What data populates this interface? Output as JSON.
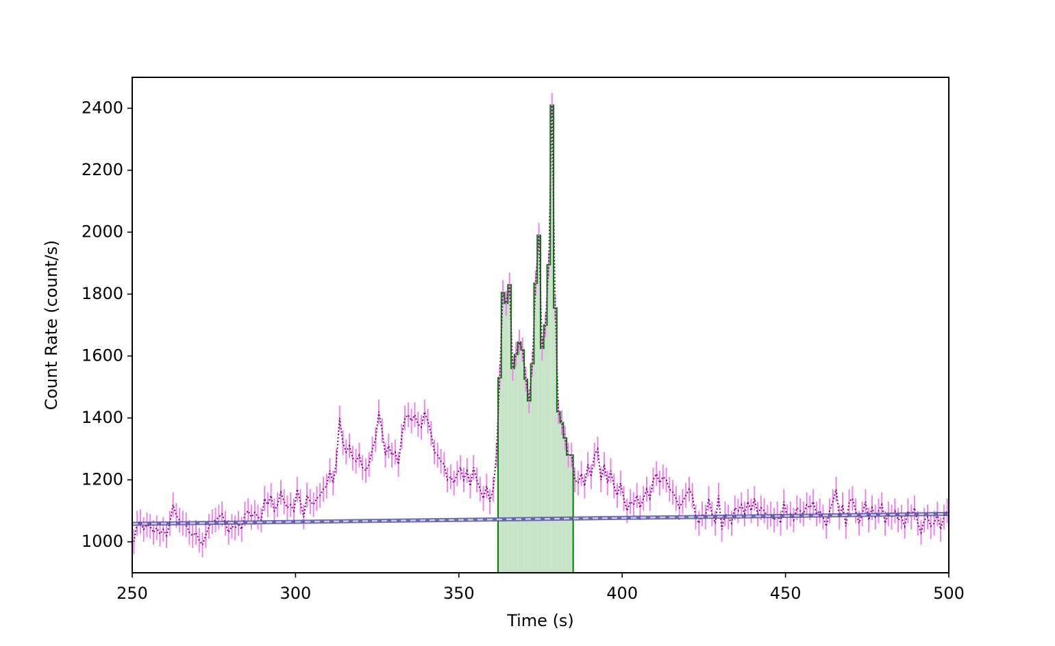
{
  "chart_data": {
    "type": "lightcurve",
    "xlabel": "Time (s)",
    "ylabel": "Count Rate (count/s)",
    "xlim": [
      250,
      500
    ],
    "ylim": [
      900,
      2500
    ],
    "xticks": [
      250,
      300,
      350,
      400,
      450,
      500
    ],
    "yticks": [
      1000,
      1200,
      1400,
      1600,
      1800,
      2000,
      2200,
      2400
    ],
    "bin_width": 1,
    "yerr": 40,
    "source_interval": [
      362,
      385
    ],
    "source_color": "#008000",
    "source_fill": "#c8e4c8",
    "series": [
      {
        "color": "#ee82ee",
        "line_color": "#800080",
        "x": [
          250,
          251,
          252,
          253,
          254,
          255,
          256,
          257,
          258,
          259,
          260,
          261,
          262,
          263,
          264,
          265,
          266,
          267,
          268,
          269,
          270,
          271,
          272,
          273,
          274,
          275,
          276,
          277,
          278,
          279,
          280,
          281,
          282,
          283,
          284,
          285,
          286,
          287,
          288,
          289,
          290,
          291,
          292,
          293,
          294,
          295,
          296,
          297,
          298,
          299,
          300,
          301,
          302,
          303,
          304,
          305,
          306,
          307,
          308,
          309,
          310,
          311,
          312,
          313,
          314,
          315,
          316,
          317,
          318,
          319,
          320,
          321,
          322,
          323,
          324,
          325,
          326,
          327,
          328,
          329,
          330,
          331,
          332,
          333,
          334,
          335,
          336,
          337,
          338,
          339,
          340,
          341,
          342,
          343,
          344,
          345,
          346,
          347,
          348,
          349,
          350,
          351,
          352,
          353,
          354,
          355,
          356,
          357,
          358,
          359,
          360,
          361,
          362,
          363,
          364,
          365,
          366,
          367,
          368,
          369,
          370,
          371,
          372,
          373,
          374,
          375,
          376,
          377,
          378,
          379,
          380,
          381,
          382,
          383,
          384,
          385,
          386,
          387,
          388,
          389,
          390,
          391,
          392,
          393,
          394,
          395,
          396,
          397,
          398,
          399,
          400,
          401,
          402,
          403,
          404,
          405,
          406,
          407,
          408,
          409,
          410,
          411,
          412,
          413,
          414,
          415,
          416,
          417,
          418,
          419,
          420,
          421,
          422,
          423,
          424,
          425,
          426,
          427,
          428,
          429,
          430,
          431,
          432,
          433,
          434,
          435,
          436,
          437,
          438,
          439,
          440,
          441,
          442,
          443,
          444,
          445,
          446,
          447,
          448,
          449,
          450,
          451,
          452,
          453,
          454,
          455,
          456,
          457,
          458,
          459,
          460,
          461,
          462,
          463,
          464,
          465,
          466,
          467,
          468,
          469,
          470,
          471,
          472,
          473,
          474,
          475,
          476,
          477,
          478,
          479,
          480,
          481,
          482,
          483,
          484,
          485,
          486,
          487,
          488,
          489,
          490,
          491,
          492,
          493,
          494,
          495,
          496,
          497,
          498,
          499
        ],
        "values": [
          1000,
          1060,
          1065,
          1040,
          1055,
          1050,
          1030,
          1045,
          1025,
          1040,
          1020,
          1060,
          1120,
          1085,
          1070,
          1060,
          1055,
          1030,
          1020,
          1030,
          1005,
          990,
          1020,
          1050,
          1065,
          1070,
          1080,
          1090,
          1060,
          1030,
          1050,
          1045,
          1060,
          1040,
          1090,
          1100,
          1080,
          1095,
          1080,
          1070,
          1140,
          1120,
          1150,
          1100,
          1120,
          1160,
          1130,
          1110,
          1120,
          1100,
          1170,
          1130,
          1080,
          1150,
          1130,
          1120,
          1140,
          1150,
          1170,
          1180,
          1230,
          1190,
          1260,
          1400,
          1320,
          1290,
          1310,
          1270,
          1260,
          1280,
          1240,
          1230,
          1250,
          1300,
          1330,
          1420,
          1360,
          1280,
          1310,
          1280,
          1290,
          1250,
          1340,
          1400,
          1410,
          1390,
          1410,
          1380,
          1370,
          1420,
          1390,
          1350,
          1290,
          1280,
          1260,
          1250,
          1200,
          1210,
          1190,
          1220,
          1240,
          1200,
          1230,
          1180,
          1240,
          1200,
          1170,
          1140,
          1180,
          1130,
          1170,
          1280,
          1530,
          1805,
          1770,
          1830,
          1560,
          1605,
          1645,
          1620,
          1525,
          1455,
          1575,
          1835,
          1990,
          1625,
          1700,
          1895,
          2410,
          1755,
          1420,
          1385,
          1335,
          1280,
          1280,
          1200,
          1190,
          1220,
          1180,
          1250,
          1210,
          1280,
          1300,
          1200,
          1250,
          1190,
          1230,
          1180,
          1150,
          1190,
          1140,
          1100,
          1130,
          1120,
          1150,
          1110,
          1140,
          1170,
          1140,
          1200,
          1220,
          1190,
          1210,
          1200,
          1170,
          1160,
          1140,
          1110,
          1130,
          1150,
          1170,
          1150,
          1080,
          1060,
          1090,
          1080,
          1140,
          1090,
          1060,
          1150,
          1040,
          1090,
          1080,
          1060,
          1110,
          1100,
          1120,
          1090,
          1130,
          1100,
          1140,
          1090,
          1110,
          1100,
          1080,
          1090,
          1070,
          1090,
          1060,
          1130,
          1080,
          1090,
          1070,
          1110,
          1100,
          1090,
          1120,
          1110,
          1130,
          1090,
          1100,
          1080,
          1050,
          1100,
          1130,
          1170,
          1080,
          1120,
          1050,
          1130,
          1140,
          1100,
          1060,
          1090,
          1130,
          1070,
          1110,
          1080,
          1100,
          1120,
          1060,
          1090,
          1080,
          1100,
          1070,
          1080,
          1050,
          1100,
          1080,
          1110,
          1060,
          1030,
          1070,
          1080,
          1050,
          1060,
          1090,
          1040,
          1080,
          1100
        ]
      },
      {
        "color": "#5050a8",
        "line_color": "#cccccc",
        "x": [
          250,
          500
        ],
        "values": [
          1058,
          1090
        ]
      }
    ]
  }
}
